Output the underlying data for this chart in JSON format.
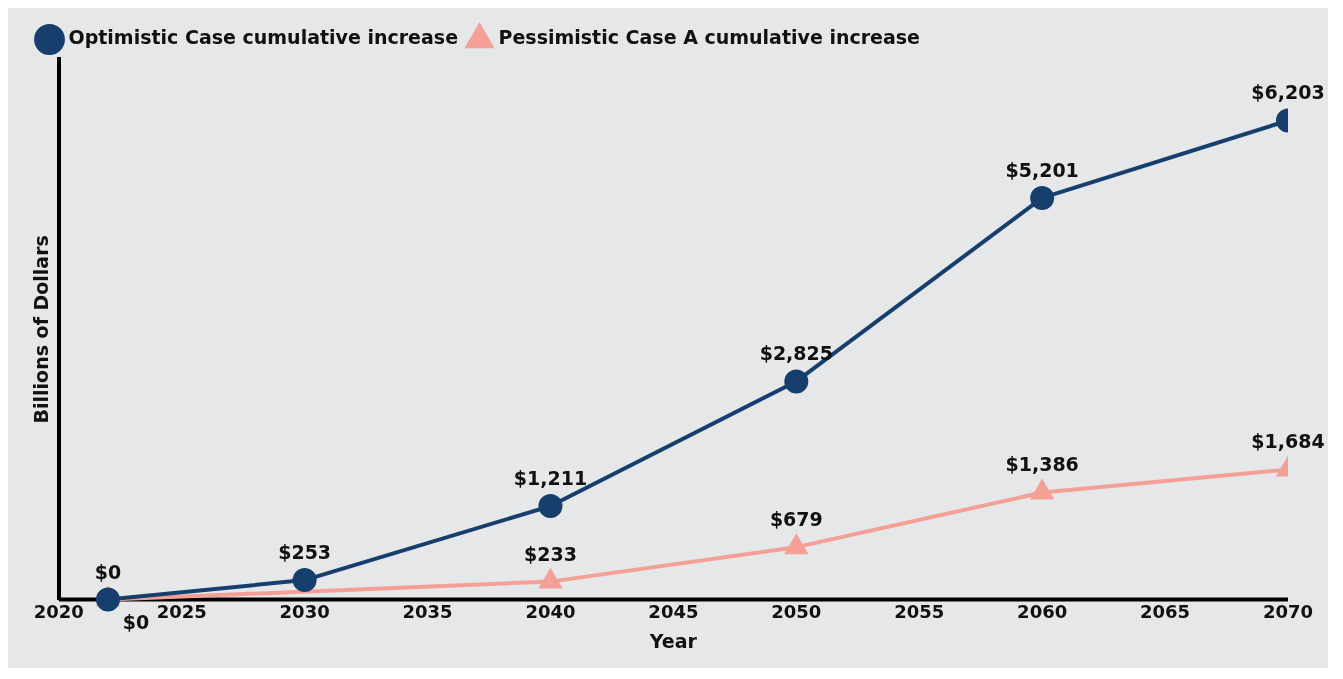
{
  "chart_data": {
    "type": "line",
    "xlabel": "Year",
    "ylabel": "Billions of Dollars",
    "xlim": [
      2020,
      2070
    ],
    "xticks": [
      2020,
      2025,
      2030,
      2035,
      2040,
      2045,
      2050,
      2055,
      2060,
      2065,
      2070
    ],
    "tick_labels": "x",
    "grid": false,
    "legend": "top left",
    "series": [
      {
        "name": "Optimistic Case cumulative increase",
        "color": "#173f6e",
        "marker": "circle",
        "x": [
          2022,
          2030,
          2040,
          2050,
          2060,
          2070
        ],
        "values": [
          0,
          253,
          1211,
          2825,
          5201,
          6203
        ],
        "value_labels": [
          "$0",
          "$253",
          "$1,211",
          "$2,825",
          "$5,201",
          "$6,203"
        ]
      },
      {
        "name": "Pessimistic Case A cumulative increase",
        "color": "#f4a097",
        "marker": "triangle",
        "x": [
          2022,
          2040,
          2050,
          2060,
          2070
        ],
        "values": [
          0,
          233,
          679,
          1386,
          1684
        ],
        "value_labels": [
          "$0",
          "$233",
          "$679",
          "$1,386",
          "$1,684"
        ]
      }
    ]
  }
}
